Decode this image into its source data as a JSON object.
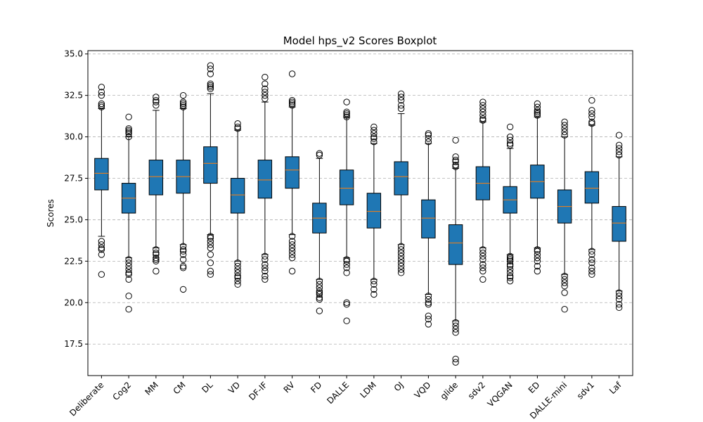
{
  "chart_data": {
    "type": "boxplot",
    "title": "Model hps_v2 Scores Boxplot",
    "xlabel": "",
    "ylabel": "Scores",
    "ylim": [
      15.6,
      35.2
    ],
    "yticks": [
      17.5,
      20.0,
      22.5,
      25.0,
      27.5,
      30.0,
      32.5,
      35.0
    ],
    "ytick_labels": [
      "17.5",
      "20.0",
      "22.5",
      "25.0",
      "27.5",
      "30.0",
      "32.5",
      "35.0"
    ],
    "grid": "y-dashed",
    "colors": {
      "box": "#1f77b4",
      "median": "#ff7f0e",
      "grid": "#b0b0b0"
    },
    "categories": [
      "Deliberate",
      "Cog2",
      "MM",
      "CM",
      "DL",
      "VD",
      "DF-IF",
      "RV",
      "FD",
      "DALLE",
      "LDM",
      "OJ",
      "VQD",
      "glide",
      "sdv2",
      "VQGAN",
      "ED",
      "DALLE-mini",
      "sdv1",
      "Laf"
    ],
    "boxes": [
      {
        "q1": 26.8,
        "median": 27.8,
        "q3": 28.7,
        "whislo": 24.0,
        "whishi": 31.7,
        "fliers": [
          33.0,
          32.7,
          32.5,
          32.0,
          31.9,
          31.8,
          23.7,
          23.5,
          23.3,
          23.2,
          22.9,
          21.7
        ]
      },
      {
        "q1": 25.4,
        "median": 26.3,
        "q3": 27.2,
        "whislo": 22.7,
        "whishi": 30.0,
        "fliers": [
          31.2,
          30.5,
          30.4,
          30.3,
          30.2,
          30.0,
          22.6,
          22.4,
          22.2,
          22.0,
          21.8,
          21.7,
          21.4,
          20.4,
          19.6
        ]
      },
      {
        "q1": 26.5,
        "median": 27.6,
        "q3": 28.6,
        "whislo": 23.3,
        "whishi": 31.6,
        "fliers": [
          32.4,
          32.2,
          32.1,
          31.9,
          23.2,
          23.0,
          22.9,
          22.7,
          22.6,
          22.5,
          21.9
        ]
      },
      {
        "q1": 26.6,
        "median": 27.6,
        "q3": 28.6,
        "whislo": 23.5,
        "whishi": 31.7,
        "fliers": [
          32.5,
          32.1,
          32.0,
          31.9,
          31.8,
          23.4,
          23.2,
          23.1,
          22.9,
          22.6,
          22.2,
          22.1,
          20.8
        ]
      },
      {
        "q1": 27.2,
        "median": 28.4,
        "q3": 29.4,
        "whislo": 24.1,
        "whishi": 32.6,
        "fliers": [
          34.3,
          34.1,
          33.8,
          33.2,
          33.1,
          33.0,
          32.9,
          24.0,
          23.9,
          23.7,
          23.5,
          23.3,
          22.9,
          22.4,
          21.9,
          21.7
        ]
      },
      {
        "q1": 25.4,
        "median": 26.5,
        "q3": 27.5,
        "whislo": 22.5,
        "whishi": 30.4,
        "fliers": [
          30.8,
          30.6,
          30.5,
          22.4,
          22.2,
          22.0,
          21.8,
          21.6,
          21.5,
          21.3,
          21.1
        ]
      },
      {
        "q1": 26.3,
        "median": 27.4,
        "q3": 28.6,
        "whislo": 22.9,
        "whishi": 32.1,
        "fliers": [
          33.6,
          33.2,
          32.9,
          32.7,
          32.5,
          32.3,
          22.8,
          22.6,
          22.3,
          22.1,
          21.9,
          21.6,
          21.4
        ]
      },
      {
        "q1": 26.9,
        "median": 28.0,
        "q3": 28.8,
        "whislo": 24.1,
        "whishi": 31.8,
        "fliers": [
          33.8,
          32.2,
          32.1,
          32.0,
          31.9,
          24.0,
          23.7,
          23.5,
          23.3,
          23.1,
          22.9,
          22.7,
          21.9
        ]
      },
      {
        "q1": 24.2,
        "median": 25.1,
        "q3": 26.0,
        "whislo": 21.4,
        "whishi": 28.7,
        "fliers": [
          29.0,
          28.9,
          21.3,
          21.1,
          20.9,
          20.7,
          20.6,
          20.5,
          20.3,
          20.2,
          19.5
        ]
      },
      {
        "q1": 25.9,
        "median": 26.9,
        "q3": 28.0,
        "whislo": 22.7,
        "whishi": 31.2,
        "fliers": [
          32.1,
          31.5,
          31.4,
          31.3,
          31.2,
          22.6,
          22.5,
          22.3,
          22.1,
          21.8,
          20.0,
          19.9,
          18.9
        ]
      },
      {
        "q1": 24.5,
        "median": 25.5,
        "q3": 26.6,
        "whislo": 21.4,
        "whishi": 29.6,
        "fliers": [
          30.6,
          30.4,
          30.2,
          30.0,
          29.9,
          29.7,
          21.3,
          21.1,
          20.8,
          20.5
        ]
      },
      {
        "q1": 26.5,
        "median": 27.6,
        "q3": 28.5,
        "whislo": 23.5,
        "whishi": 31.4,
        "fliers": [
          32.6,
          32.4,
          32.2,
          31.9,
          31.7,
          23.4,
          23.2,
          23.0,
          22.8,
          22.6,
          22.4,
          22.2,
          22.0,
          21.8
        ]
      },
      {
        "q1": 23.9,
        "median": 25.1,
        "q3": 26.2,
        "whislo": 20.5,
        "whishi": 29.6,
        "fliers": [
          30.2,
          30.1,
          29.9,
          29.7,
          20.4,
          20.2,
          20.0,
          19.9,
          19.2,
          19.0,
          18.7
        ]
      },
      {
        "q1": 22.3,
        "median": 23.6,
        "q3": 24.7,
        "whislo": 18.9,
        "whishi": 28.1,
        "fliers": [
          29.8,
          28.8,
          28.6,
          28.5,
          28.3,
          28.2,
          18.8,
          18.6,
          18.4,
          18.2,
          16.6,
          16.4
        ]
      },
      {
        "q1": 26.2,
        "median": 27.2,
        "q3": 28.2,
        "whislo": 23.3,
        "whishi": 30.9,
        "fliers": [
          32.1,
          31.9,
          31.7,
          31.5,
          31.3,
          31.1,
          31.0,
          23.2,
          23.0,
          22.8,
          22.6,
          22.3,
          22.1,
          21.9,
          21.4
        ]
      },
      {
        "q1": 25.4,
        "median": 26.2,
        "q3": 27.0,
        "whislo": 22.9,
        "whishi": 29.3,
        "fliers": [
          30.6,
          30.0,
          29.8,
          29.6,
          29.5,
          22.8,
          22.7,
          22.6,
          22.5,
          22.3,
          22.2,
          22.0,
          21.8,
          21.6,
          21.5,
          21.3
        ]
      },
      {
        "q1": 26.3,
        "median": 27.3,
        "q3": 28.3,
        "whislo": 23.3,
        "whishi": 31.2,
        "fliers": [
          32.0,
          31.8,
          31.6,
          31.5,
          31.4,
          31.3,
          23.2,
          23.1,
          22.9,
          22.7,
          22.5,
          22.2,
          21.9
        ]
      },
      {
        "q1": 24.8,
        "median": 25.8,
        "q3": 26.8,
        "whislo": 21.7,
        "whishi": 30.0,
        "fliers": [
          30.9,
          30.7,
          30.5,
          30.3,
          30.1,
          21.6,
          21.4,
          21.2,
          21.0,
          20.6,
          19.6
        ]
      },
      {
        "q1": 26.0,
        "median": 26.9,
        "q3": 27.9,
        "whislo": 23.2,
        "whishi": 30.7,
        "fliers": [
          32.2,
          31.6,
          31.4,
          31.2,
          30.9,
          30.8,
          23.1,
          22.9,
          22.6,
          22.4,
          22.1,
          21.9,
          21.7
        ]
      },
      {
        "q1": 23.7,
        "median": 24.8,
        "q3": 25.8,
        "whislo": 20.7,
        "whishi": 28.8,
        "fliers": [
          30.1,
          29.5,
          29.3,
          29.1,
          28.9,
          20.6,
          20.4,
          20.2,
          19.9,
          19.7
        ]
      }
    ]
  }
}
